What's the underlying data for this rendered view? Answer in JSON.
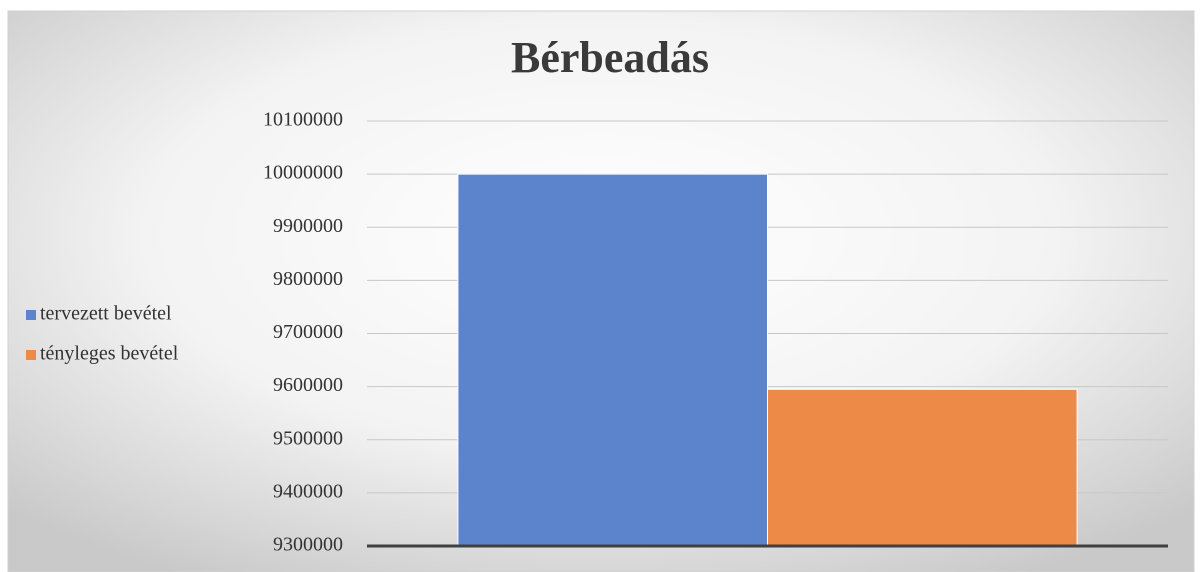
{
  "chart_data": {
    "type": "bar",
    "title": "Bérbeadás",
    "categories": [
      null
    ],
    "series": [
      {
        "name": "tervezett bevétel",
        "color": "#5b84cc",
        "values": [
          10000000
        ]
      },
      {
        "name": "tényleges bevétel",
        "color": "#ee8a48",
        "values": [
          9595000
        ]
      }
    ],
    "ylim": [
      9300000,
      10100000
    ],
    "yticks": [
      9300000,
      9400000,
      9500000,
      9600000,
      9700000,
      9800000,
      9900000,
      10000000,
      10100000
    ],
    "grid": true,
    "legend": "left"
  }
}
